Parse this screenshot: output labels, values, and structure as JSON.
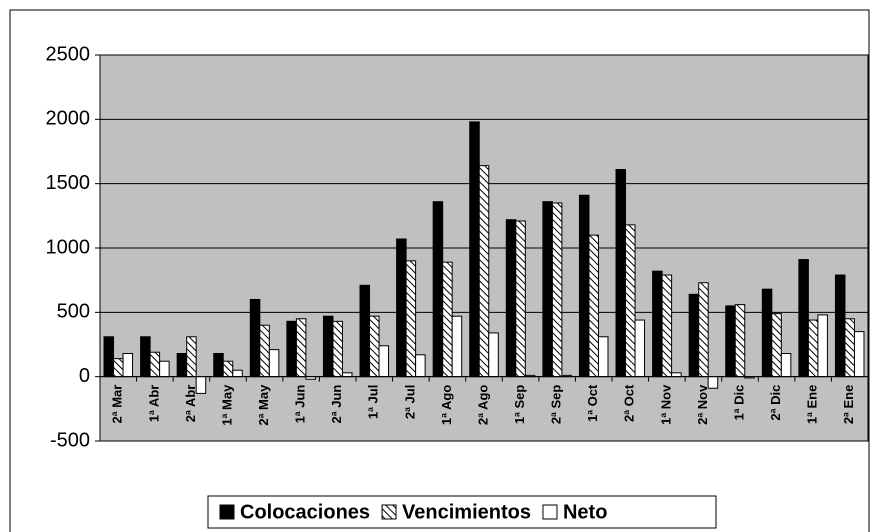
{
  "chart_data": {
    "type": "bar",
    "categories": [
      "2ª Mar",
      "1ª Abr",
      "2ª Abr",
      "1ª May",
      "2ª May",
      "1ª Jun",
      "2ª Jun",
      "1ª Jul",
      "2ª Jul",
      "1ª Ago",
      "2ª Ago",
      "1ª Sep",
      "2ª Sep",
      "1ª Oct",
      "2ª Oct",
      "1ª Nov",
      "2ª Nov",
      "1ª Dic",
      "2ª Dic",
      "1ª Ene",
      "2ª Ene"
    ],
    "series": [
      {
        "name": "Colocaciones",
        "color": "#000000",
        "values": [
          310,
          310,
          180,
          180,
          600,
          430,
          470,
          710,
          1070,
          1360,
          1980,
          1220,
          1360,
          1410,
          1610,
          820,
          640,
          550,
          680,
          910,
          790
        ]
      },
      {
        "name": "Vencimientos",
        "color": "#000000",
        "fill": "hatch",
        "values": [
          140,
          190,
          310,
          120,
          400,
          450,
          430,
          470,
          900,
          890,
          1640,
          1210,
          1350,
          1100,
          1180,
          790,
          730,
          560,
          490,
          440,
          450
        ]
      },
      {
        "name": "Neto",
        "color": "#ffffff",
        "values": [
          180,
          120,
          -130,
          50,
          210,
          -20,
          30,
          240,
          170,
          470,
          340,
          10,
          10,
          310,
          440,
          30,
          -90,
          -10,
          180,
          480,
          350
        ]
      }
    ],
    "ylim": [
      -500,
      2500
    ],
    "yticks": [
      -500,
      0,
      500,
      1000,
      1500,
      2000,
      2500
    ],
    "grid": true,
    "plot_background": "#c0c0c0",
    "legend": "bottom"
  }
}
